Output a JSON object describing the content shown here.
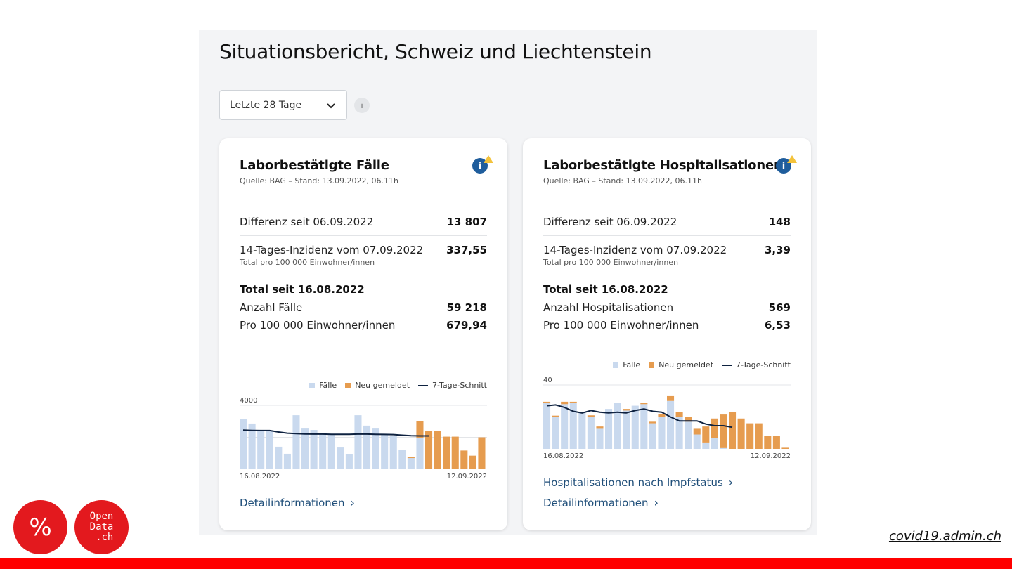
{
  "page": {
    "title": "Situationsbericht, Schweiz und Liechtenstein",
    "period_select": {
      "value": "Letzte 28 Tage"
    },
    "info_label": "i"
  },
  "cards": [
    {
      "title": "Laborbestätigte Fälle",
      "source": "Quelle: BAG – Stand: 13.09.2022, 06.11h",
      "diff_label": "Differenz seit 06.09.2022",
      "diff_value": "13 807",
      "incidence_label": "14-Tages-Inzidenz vom 07.09.2022",
      "incidence_sub": "Total pro 100 000 Einwohner/innen",
      "incidence_value": "337,55",
      "total_head": "Total seit 16.08.2022",
      "count_label": "Anzahl Fälle",
      "count_value": "59 218",
      "per100k_label": "Pro 100 000 Einwohner/innen",
      "per100k_value": "679,94",
      "links": [
        "Detailinformationen"
      ]
    },
    {
      "title": "Laborbestätigte Hospitalisationen",
      "source": "Quelle: BAG – Stand: 13.09.2022, 06.11h",
      "diff_label": "Differenz seit 06.09.2022",
      "diff_value": "148",
      "incidence_label": "14-Tages-Inzidenz vom 07.09.2022",
      "incidence_sub": "Total pro 100 000 Einwohner/innen",
      "incidence_value": "3,39",
      "total_head": "Total seit 16.08.2022",
      "count_label": "Anzahl Hospitalisationen",
      "count_value": "569",
      "per100k_label": "Pro 100 000 Einwohner/innen",
      "per100k_value": "6,53",
      "links": [
        "Hospitalisationen nach Impfstatus",
        "Detailinformationen"
      ]
    }
  ],
  "legend": {
    "faelle": "Fälle",
    "neu": "Neu gemeldet",
    "avg": "7-Tage-Schnitt"
  },
  "colors": {
    "faelle": "#c9d9ee",
    "neu": "#e69c4f",
    "avg": "#0e2240",
    "link": "#1f4e79",
    "brand_red": "#ff0000"
  },
  "chart_data": [
    {
      "type": "bar",
      "title": "Laborbestätigte Fälle",
      "stacked": true,
      "ylim": [
        0,
        4000
      ],
      "yticks": [
        4000
      ],
      "x_start_label": "16.08.2022",
      "x_end_label": "12.09.2022",
      "series": [
        {
          "name": "Fälle",
          "values": [
            3120,
            2860,
            2460,
            2420,
            1410,
            970,
            3380,
            2590,
            2460,
            2240,
            2200,
            1360,
            930,
            3380,
            2730,
            2590,
            2150,
            2110,
            1190,
            700,
            1980,
            0,
            0,
            0,
            0,
            0,
            0,
            0
          ]
        },
        {
          "name": "Neu gemeldet",
          "values": [
            0,
            0,
            0,
            0,
            0,
            0,
            0,
            0,
            0,
            0,
            0,
            0,
            0,
            0,
            0,
            0,
            0,
            0,
            0,
            50,
            1010,
            2400,
            2400,
            2040,
            2040,
            1170,
            850,
            2000
          ]
        },
        {
          "name": "7-Tage-Schnitt",
          "values": [
            2450,
            2430,
            2420,
            2420,
            2330,
            2260,
            2230,
            2210,
            2200,
            2200,
            2190,
            2190,
            2190,
            2200,
            2200,
            2190,
            2180,
            2170,
            2130,
            2100,
            2090,
            2090
          ]
        }
      ]
    },
    {
      "type": "bar",
      "title": "Laborbestätigte Hospitalisationen",
      "stacked": true,
      "ylim": [
        0,
        40
      ],
      "yticks": [
        40
      ],
      "x_start_label": "16.08.2022",
      "x_end_label": "12.09.2022",
      "series": [
        {
          "name": "Fälle",
          "values": [
            29,
            20,
            28,
            29,
            23,
            20,
            13,
            25,
            29,
            24,
            27,
            28,
            16,
            20,
            30,
            20,
            17,
            9,
            4,
            7,
            0.5,
            0,
            0,
            0,
            0,
            0,
            0,
            0
          ]
        },
        {
          "name": "Neu gemeldet",
          "values": [
            0.5,
            0.8,
            1.5,
            0.5,
            0,
            1,
            1,
            0,
            0,
            1,
            0,
            1,
            1,
            2,
            3,
            3,
            3,
            4,
            10,
            12,
            21,
            23,
            19,
            16,
            16,
            8,
            8,
            0.7
          ]
        },
        {
          "name": "7-Tage-Schnitt",
          "values": [
            27,
            27.5,
            26,
            23.5,
            22.5,
            24,
            23,
            22.5,
            23,
            22.5,
            24,
            25,
            23.5,
            23,
            20,
            17.5,
            17.5,
            17.5,
            15.5,
            14.5,
            14.5,
            13.5
          ]
        }
      ]
    }
  ],
  "logos": {
    "left": "%",
    "right": "Open\nData\n .ch"
  },
  "footer": {
    "link": "covid19.admin.ch"
  }
}
